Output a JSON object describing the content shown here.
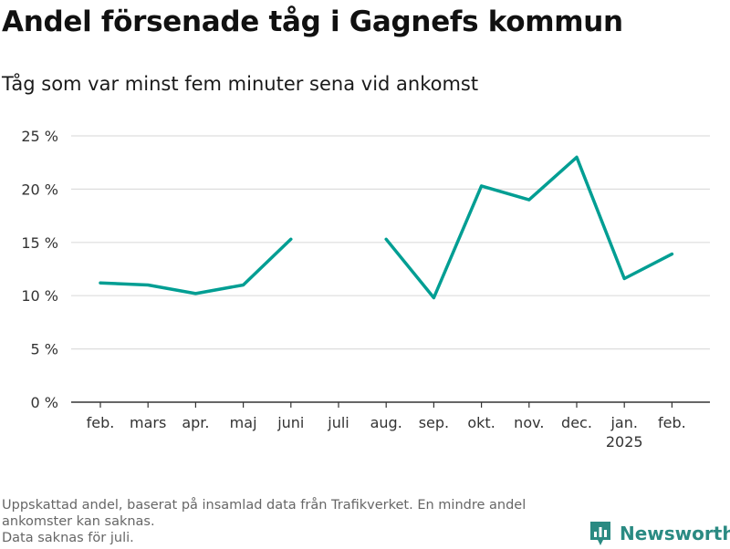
{
  "title": "Andel försenade tåg i Gagnefs kommun",
  "subtitle": "Tåg som var minst fem minuter sena vid ankomst",
  "footnote": [
    "Uppskattad andel, baserat på insamlad data från Trafikverket. En mindre andel",
    "ankomster kan saknas.",
    "Data saknas för juli."
  ],
  "brand": {
    "name": "Newsworthy",
    "icon": "bar-chart-logo-icon"
  },
  "colors": {
    "line": "#009e93",
    "grid": "#dddddd",
    "axis": "#333333",
    "brand": "#2a8a82"
  },
  "chart_data": {
    "type": "line",
    "categories": [
      "feb.",
      "mars",
      "apr.",
      "maj",
      "juni",
      "juli",
      "aug.",
      "sep.",
      "okt.",
      "nov.",
      "dec.",
      "jan.",
      "feb."
    ],
    "category_sublabels": [
      "",
      "",
      "",
      "",
      "",
      "",
      "",
      "",
      "",
      "",
      "",
      "2025",
      ""
    ],
    "series": [
      {
        "values": [
          11.2,
          11.0,
          10.2,
          11.0,
          15.3,
          null,
          15.3,
          9.8,
          20.3,
          19.0,
          23.0,
          11.6,
          13.9
        ]
      }
    ],
    "ylim": [
      0,
      25
    ],
    "yticks": [
      0,
      5,
      10,
      15,
      20,
      25
    ],
    "ytick_labels": [
      "0 %",
      "5 %",
      "10 %",
      "15 %",
      "20 %",
      "25 %"
    ],
    "grid": true,
    "legend": "none"
  }
}
